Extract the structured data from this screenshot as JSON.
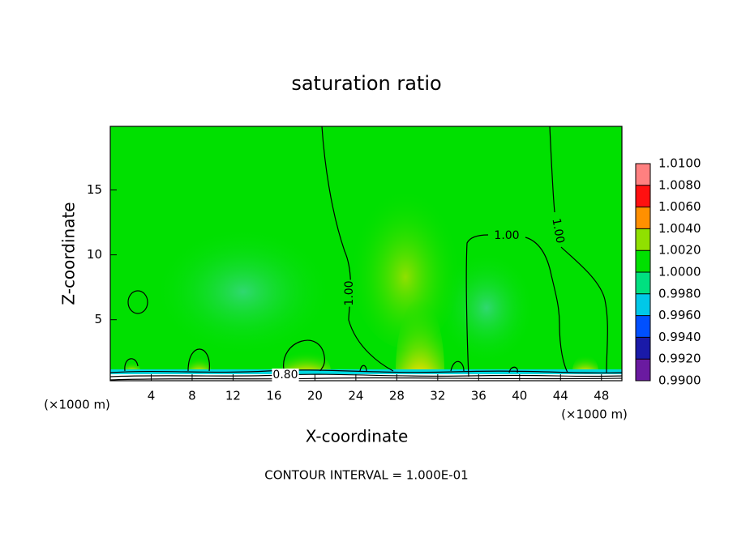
{
  "chart_data": {
    "type": "contour",
    "title": "saturation ratio",
    "xlabel": "X-coordinate",
    "ylabel": "Z-coordinate",
    "x_unit": "(×1000 m)",
    "y_unit": "(×1000 m)",
    "footer": "CONTOUR INTERVAL = 1.000E-01",
    "xlim": [
      0,
      50
    ],
    "ylim": [
      0.3,
      19.9
    ],
    "xticks": [
      4,
      8,
      12,
      16,
      20,
      24,
      28,
      32,
      36,
      40,
      44,
      48
    ],
    "yticks": [
      5,
      10,
      15
    ],
    "contour_labels": [
      "1.00",
      "1.00",
      "1.00",
      "0.80"
    ],
    "colorbar": {
      "colors": [
        "#6a1aa0",
        "#1a1aa8",
        "#0050ff",
        "#00c8e8",
        "#00e080",
        "#00e000",
        "#90e000",
        "#ff9000",
        "#ff1010",
        "#ff8080"
      ],
      "ticks": [
        {
          "value": 0.99,
          "label": "0.9900"
        },
        {
          "value": 0.992,
          "label": "0.9920"
        },
        {
          "value": 0.994,
          "label": "0.9940"
        },
        {
          "value": 0.996,
          "label": "0.9960"
        },
        {
          "value": 0.998,
          "label": "0.9980"
        },
        {
          "value": 1.0,
          "label": "1.0000"
        },
        {
          "value": 1.002,
          "label": "1.0020"
        },
        {
          "value": 1.004,
          "label": "1.0040"
        },
        {
          "value": 1.006,
          "label": "1.0060"
        },
        {
          "value": 1.008,
          "label": "1.0080"
        },
        {
          "value": 1.01,
          "label": "1.0100"
        }
      ]
    }
  }
}
